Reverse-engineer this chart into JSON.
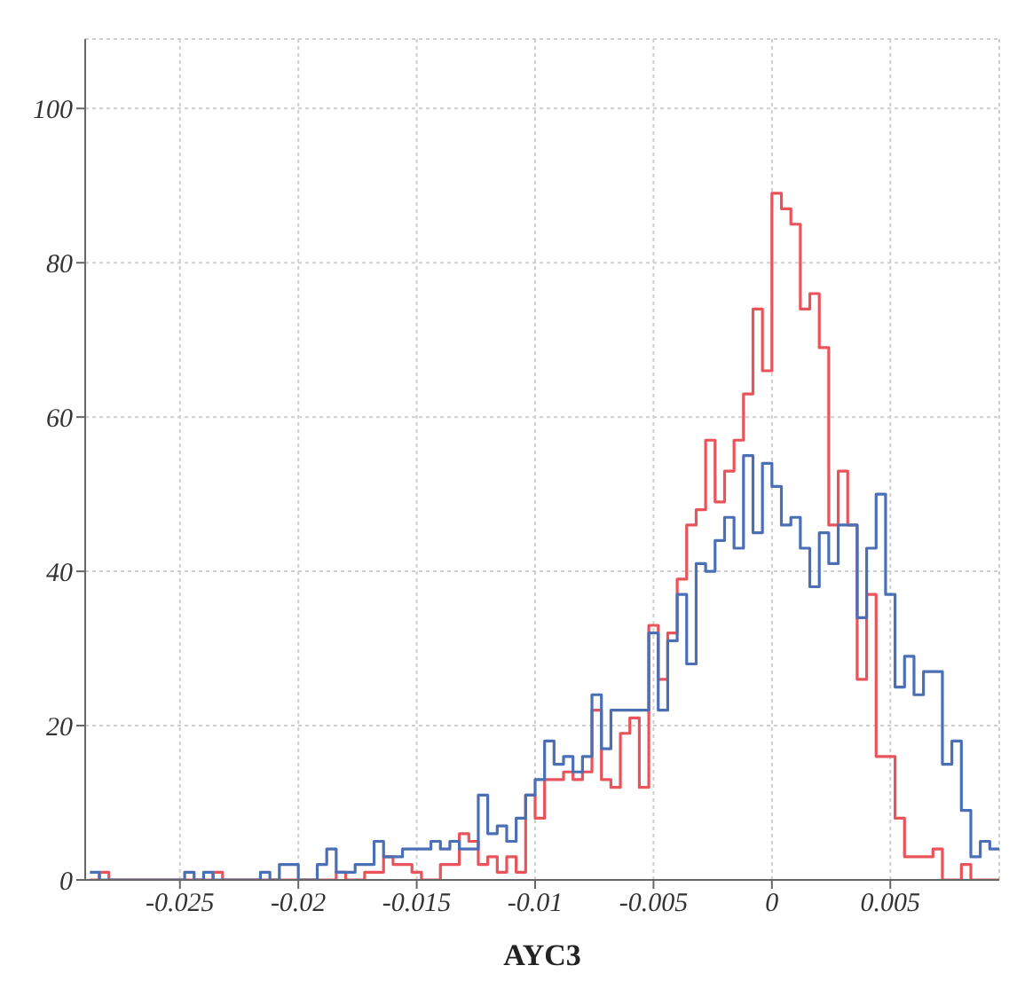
{
  "chart_data": {
    "type": "histogram",
    "xlabel": "AYC3",
    "bins": [
      -0.0288,
      -0.0284,
      -0.028,
      -0.0276,
      -0.0272,
      -0.0268,
      -0.0264,
      -0.026,
      -0.0256,
      -0.0252,
      -0.0248,
      -0.0244,
      -0.024,
      -0.0236,
      -0.0232,
      -0.0228,
      -0.0224,
      -0.022,
      -0.0216,
      -0.0212,
      -0.0208,
      -0.0204,
      -0.02,
      -0.0196,
      -0.0192,
      -0.0188,
      -0.0184,
      -0.018,
      -0.0176,
      -0.0172,
      -0.0168,
      -0.0164,
      -0.016,
      -0.0156,
      -0.0152,
      -0.0148,
      -0.0144,
      -0.014,
      -0.0136,
      -0.0132,
      -0.0128,
      -0.0124,
      -0.012,
      -0.0116,
      -0.0112,
      -0.0108,
      -0.0104,
      -0.01,
      -0.0096,
      -0.0092,
      -0.0088,
      -0.0084,
      -0.008,
      -0.0076,
      -0.0072,
      -0.0068,
      -0.0064,
      -0.006,
      -0.0056,
      -0.0052,
      -0.0048,
      -0.0044,
      -0.004,
      -0.0036,
      -0.0032,
      -0.0028,
      -0.0024,
      -0.002,
      -0.0016,
      -0.0012,
      -0.0008,
      -0.0004,
      0,
      0.0004,
      0.0008,
      0.0012,
      0.0016,
      0.002,
      0.0024,
      0.0028,
      0.0032,
      0.0036,
      0.004,
      0.0044,
      0.0048,
      0.0052,
      0.0056,
      0.006,
      0.0064,
      0.0068,
      0.0072,
      0.0076,
      0.008,
      0.0084,
      0.0088,
      0.0092,
      0.0096
    ],
    "series": [
      {
        "color": "#e8545a",
        "values": [
          0,
          1,
          0,
          0,
          0,
          0,
          0,
          0,
          0,
          0,
          0,
          0,
          0,
          1,
          0,
          0,
          0,
          0,
          0,
          0,
          0,
          0,
          0,
          0,
          0,
          0,
          1,
          0,
          0,
          1,
          1,
          3,
          2,
          2,
          1,
          0,
          0,
          2,
          2,
          6,
          5,
          2,
          3,
          1,
          3,
          1,
          11,
          8,
          13,
          13,
          14,
          13,
          14,
          22,
          13,
          12,
          19,
          21,
          12,
          33,
          26,
          32,
          39,
          46,
          48,
          57,
          49,
          53,
          57,
          63,
          74,
          66,
          89,
          87,
          85,
          74,
          76,
          69,
          46,
          53,
          46,
          26,
          37,
          16,
          16,
          8,
          3,
          3,
          3,
          4,
          0,
          0,
          2,
          0,
          0,
          0
        ]
      },
      {
        "color": "#4a6fb5",
        "values": [
          1,
          0,
          0,
          0,
          0,
          0,
          0,
          0,
          0,
          0,
          1,
          0,
          1,
          0,
          0,
          0,
          0,
          0,
          1,
          0,
          2,
          2,
          0,
          0,
          2,
          4,
          1,
          1,
          2,
          2,
          5,
          3,
          3,
          4,
          4,
          4,
          5,
          4,
          5,
          4,
          4,
          11,
          6,
          7,
          5,
          8,
          11,
          13,
          18,
          15,
          16,
          14,
          16,
          24,
          17,
          22,
          22,
          22,
          22,
          32,
          22,
          31,
          37,
          28,
          41,
          40,
          44,
          47,
          43,
          55,
          45,
          54,
          51,
          46,
          47,
          43,
          38,
          45,
          41,
          46,
          46,
          34,
          43,
          50,
          37,
          25,
          29,
          24,
          27,
          27,
          15,
          18,
          9,
          3,
          5,
          4
        ]
      }
    ],
    "xlim": [
      -0.029,
      0.0096
    ],
    "xticks": [
      -0.025,
      -0.02,
      -0.015,
      -0.01,
      -0.005,
      0,
      0.005
    ],
    "ylim": [
      0,
      109
    ],
    "yticks": [
      0,
      20,
      40,
      60,
      80,
      100
    ],
    "grid": true
  }
}
